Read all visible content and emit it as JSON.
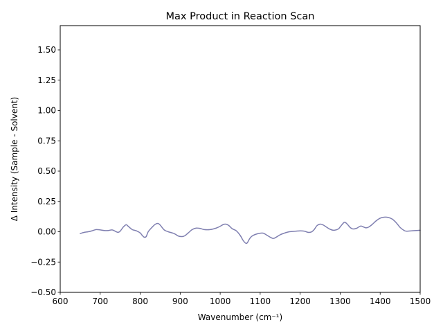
{
  "chart_data": {
    "type": "line",
    "title": "Max Product in Reaction Scan",
    "xlabel": "Wavenumber (cm⁻¹)",
    "ylabel": "Δ Intensity (Sample - Solvent)",
    "xlim": [
      600,
      1500
    ],
    "ylim": [
      -0.5,
      1.7
    ],
    "xticks": [
      600,
      700,
      800,
      900,
      1000,
      1100,
      1200,
      1300,
      1400,
      1500
    ],
    "yticks": [
      -0.5,
      -0.25,
      0.0,
      0.25,
      0.5,
      0.75,
      1.0,
      1.25,
      1.5
    ],
    "xtick_labels": [
      "600",
      "700",
      "800",
      "900",
      "1000",
      "1100",
      "1200",
      "1300",
      "1400",
      "1500"
    ],
    "ytick_labels": [
      "−0.50",
      "−0.25",
      "0.00",
      "0.25",
      "0.50",
      "0.75",
      "1.00",
      "1.25",
      "1.50"
    ],
    "grid": false,
    "legend": "none",
    "line_color": "#7f7fb0",
    "series": [
      {
        "x": [
          650,
          660,
          670,
          680,
          690,
          700,
          710,
          720,
          730,
          740,
          745,
          750,
          758,
          765,
          770,
          780,
          790,
          800,
          805,
          810,
          815,
          820,
          830,
          838,
          845,
          850,
          860,
          870,
          885,
          895,
          905,
          912,
          920,
          930,
          940,
          950,
          960,
          975,
          990,
          1000,
          1008,
          1015,
          1022,
          1030,
          1040,
          1050,
          1057,
          1064,
          1068,
          1074,
          1080,
          1090,
          1100,
          1108,
          1115,
          1125,
          1133,
          1140,
          1150,
          1160,
          1170,
          1180,
          1190,
          1200,
          1210,
          1220,
          1228,
          1235,
          1242,
          1250,
          1258,
          1265,
          1275,
          1285,
          1295,
          1300,
          1308,
          1312,
          1318,
          1325,
          1332,
          1340,
          1347,
          1352,
          1358,
          1365,
          1372,
          1380,
          1390,
          1400,
          1410,
          1420,
          1430,
          1440,
          1450,
          1460,
          1465,
          1470,
          1480,
          1490,
          1500
        ],
        "y": [
          -0.015,
          -0.005,
          0.0,
          0.008,
          0.018,
          0.015,
          0.01,
          0.01,
          0.015,
          0.0,
          -0.005,
          0.005,
          0.04,
          0.058,
          0.045,
          0.018,
          0.008,
          -0.01,
          -0.03,
          -0.045,
          -0.04,
          0.0,
          0.038,
          0.062,
          0.068,
          0.055,
          0.015,
          0.0,
          -0.015,
          -0.035,
          -0.04,
          -0.032,
          -0.01,
          0.018,
          0.03,
          0.027,
          0.018,
          0.018,
          0.03,
          0.045,
          0.06,
          0.062,
          0.05,
          0.025,
          0.008,
          -0.03,
          -0.07,
          -0.095,
          -0.09,
          -0.055,
          -0.035,
          -0.02,
          -0.012,
          -0.012,
          -0.025,
          -0.045,
          -0.055,
          -0.045,
          -0.025,
          -0.012,
          -0.002,
          0.002,
          0.005,
          0.007,
          0.005,
          -0.005,
          -0.002,
          0.018,
          0.05,
          0.063,
          0.055,
          0.04,
          0.02,
          0.012,
          0.022,
          0.04,
          0.072,
          0.078,
          0.062,
          0.035,
          0.023,
          0.027,
          0.04,
          0.047,
          0.04,
          0.032,
          0.04,
          0.06,
          0.09,
          0.112,
          0.12,
          0.118,
          0.105,
          0.075,
          0.035,
          0.01,
          0.005,
          0.005,
          0.008,
          0.01,
          0.012
        ]
      }
    ]
  }
}
